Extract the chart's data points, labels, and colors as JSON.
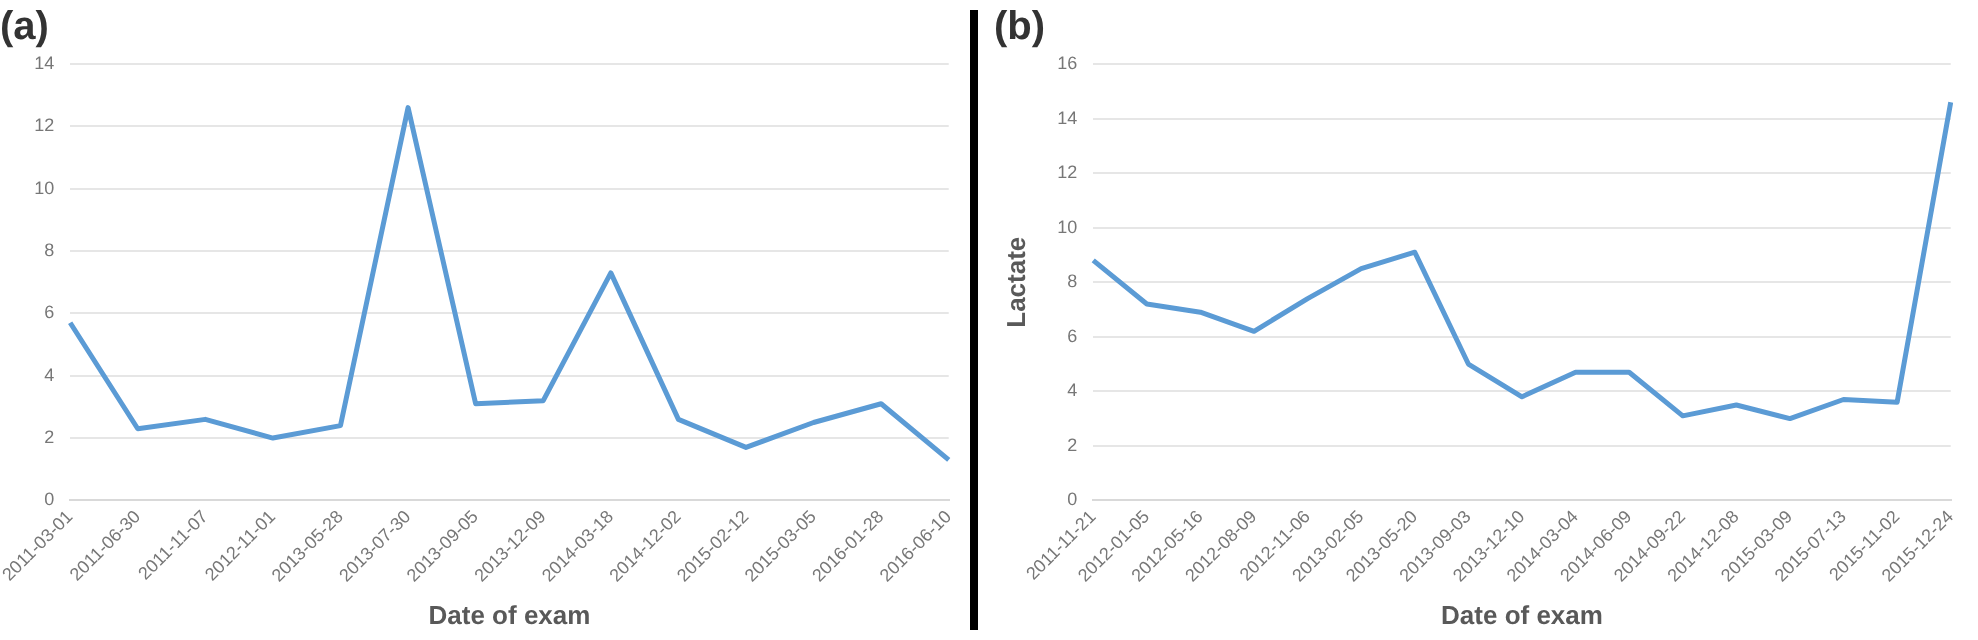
{
  "chart_data": [
    {
      "type": "line",
      "title": "(a)",
      "xlabel": "Date of exam",
      "categories": [
        "2011-03-01",
        "2011-06-30",
        "2011-11-07",
        "2012-11-01",
        "2013-05-28",
        "2013-07-30",
        "2013-09-05",
        "2013-12-09",
        "2014-03-18",
        "2014-12-02",
        "2015-02-12",
        "2015-03-05",
        "2016-01-28",
        "2016-06-10"
      ],
      "series": [
        {
          "color": "#5b9bd5",
          "values": [
            5.7,
            2.3,
            2.6,
            2.0,
            2.4,
            12.6,
            3.1,
            3.2,
            7.3,
            2.6,
            1.7,
            2.5,
            3.1,
            1.3
          ]
        }
      ],
      "ylim": [
        0,
        14
      ],
      "yticks": [
        0,
        2,
        4,
        6,
        8,
        10,
        12,
        14
      ],
      "grid": "y",
      "legend": false,
      "marker": "none",
      "line_style": "solid"
    },
    {
      "type": "line",
      "title": "(b)",
      "xlabel": "Date of exam",
      "ylabel": "Lactate",
      "categories": [
        "2011-11-21",
        "2012-01-05",
        "2012-05-16",
        "2012-08-09",
        "2012-11-06",
        "2013-02-05",
        "2013-05-20",
        "2013-09-03",
        "2013-12-10",
        "2014-03-04",
        "2014-06-09",
        "2014-09-22",
        "2014-12-08",
        "2015-03-09",
        "2015-07-13",
        "2015-11-02",
        "2015-12-24"
      ],
      "series": [
        {
          "color": "#5b9bd5",
          "values": [
            8.8,
            7.2,
            6.9,
            6.2,
            7.4,
            8.5,
            9.1,
            5.0,
            3.8,
            4.7,
            4.7,
            3.1,
            3.5,
            3.0,
            3.7,
            3.6,
            14.6
          ]
        }
      ],
      "ylim": [
        0,
        16
      ],
      "yticks": [
        0,
        2,
        4,
        6,
        8,
        10,
        12,
        14,
        16
      ],
      "grid": "y",
      "legend": false,
      "marker": "none",
      "line_style": "solid"
    }
  ]
}
